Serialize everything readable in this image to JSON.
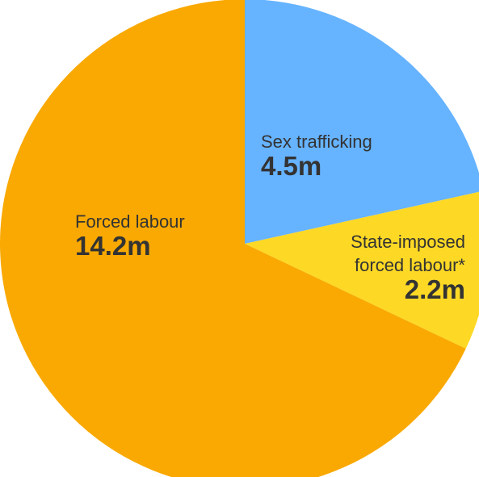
{
  "chart_data": {
    "type": "pie",
    "title": "",
    "unit": "m",
    "slices": [
      {
        "name": "Sex trafficking",
        "name_lines": [
          "Sex trafficking"
        ],
        "value": 4.5,
        "value_label": "4.5m",
        "color": "#66b3ff"
      },
      {
        "name": "State-imposed forced labour*",
        "name_lines": [
          "State-imposed",
          "forced labour*"
        ],
        "value": 2.2,
        "value_label": "2.2m",
        "color": "#fdd825"
      },
      {
        "name": "Forced labour",
        "name_lines": [
          "Forced labour"
        ],
        "value": 14.2,
        "value_label": "14.2m",
        "color": "#f9a901"
      }
    ],
    "start_angle": "12 o'clock",
    "direction": "clockwise",
    "legend": "none (labels placed on slices)",
    "grid": false
  }
}
